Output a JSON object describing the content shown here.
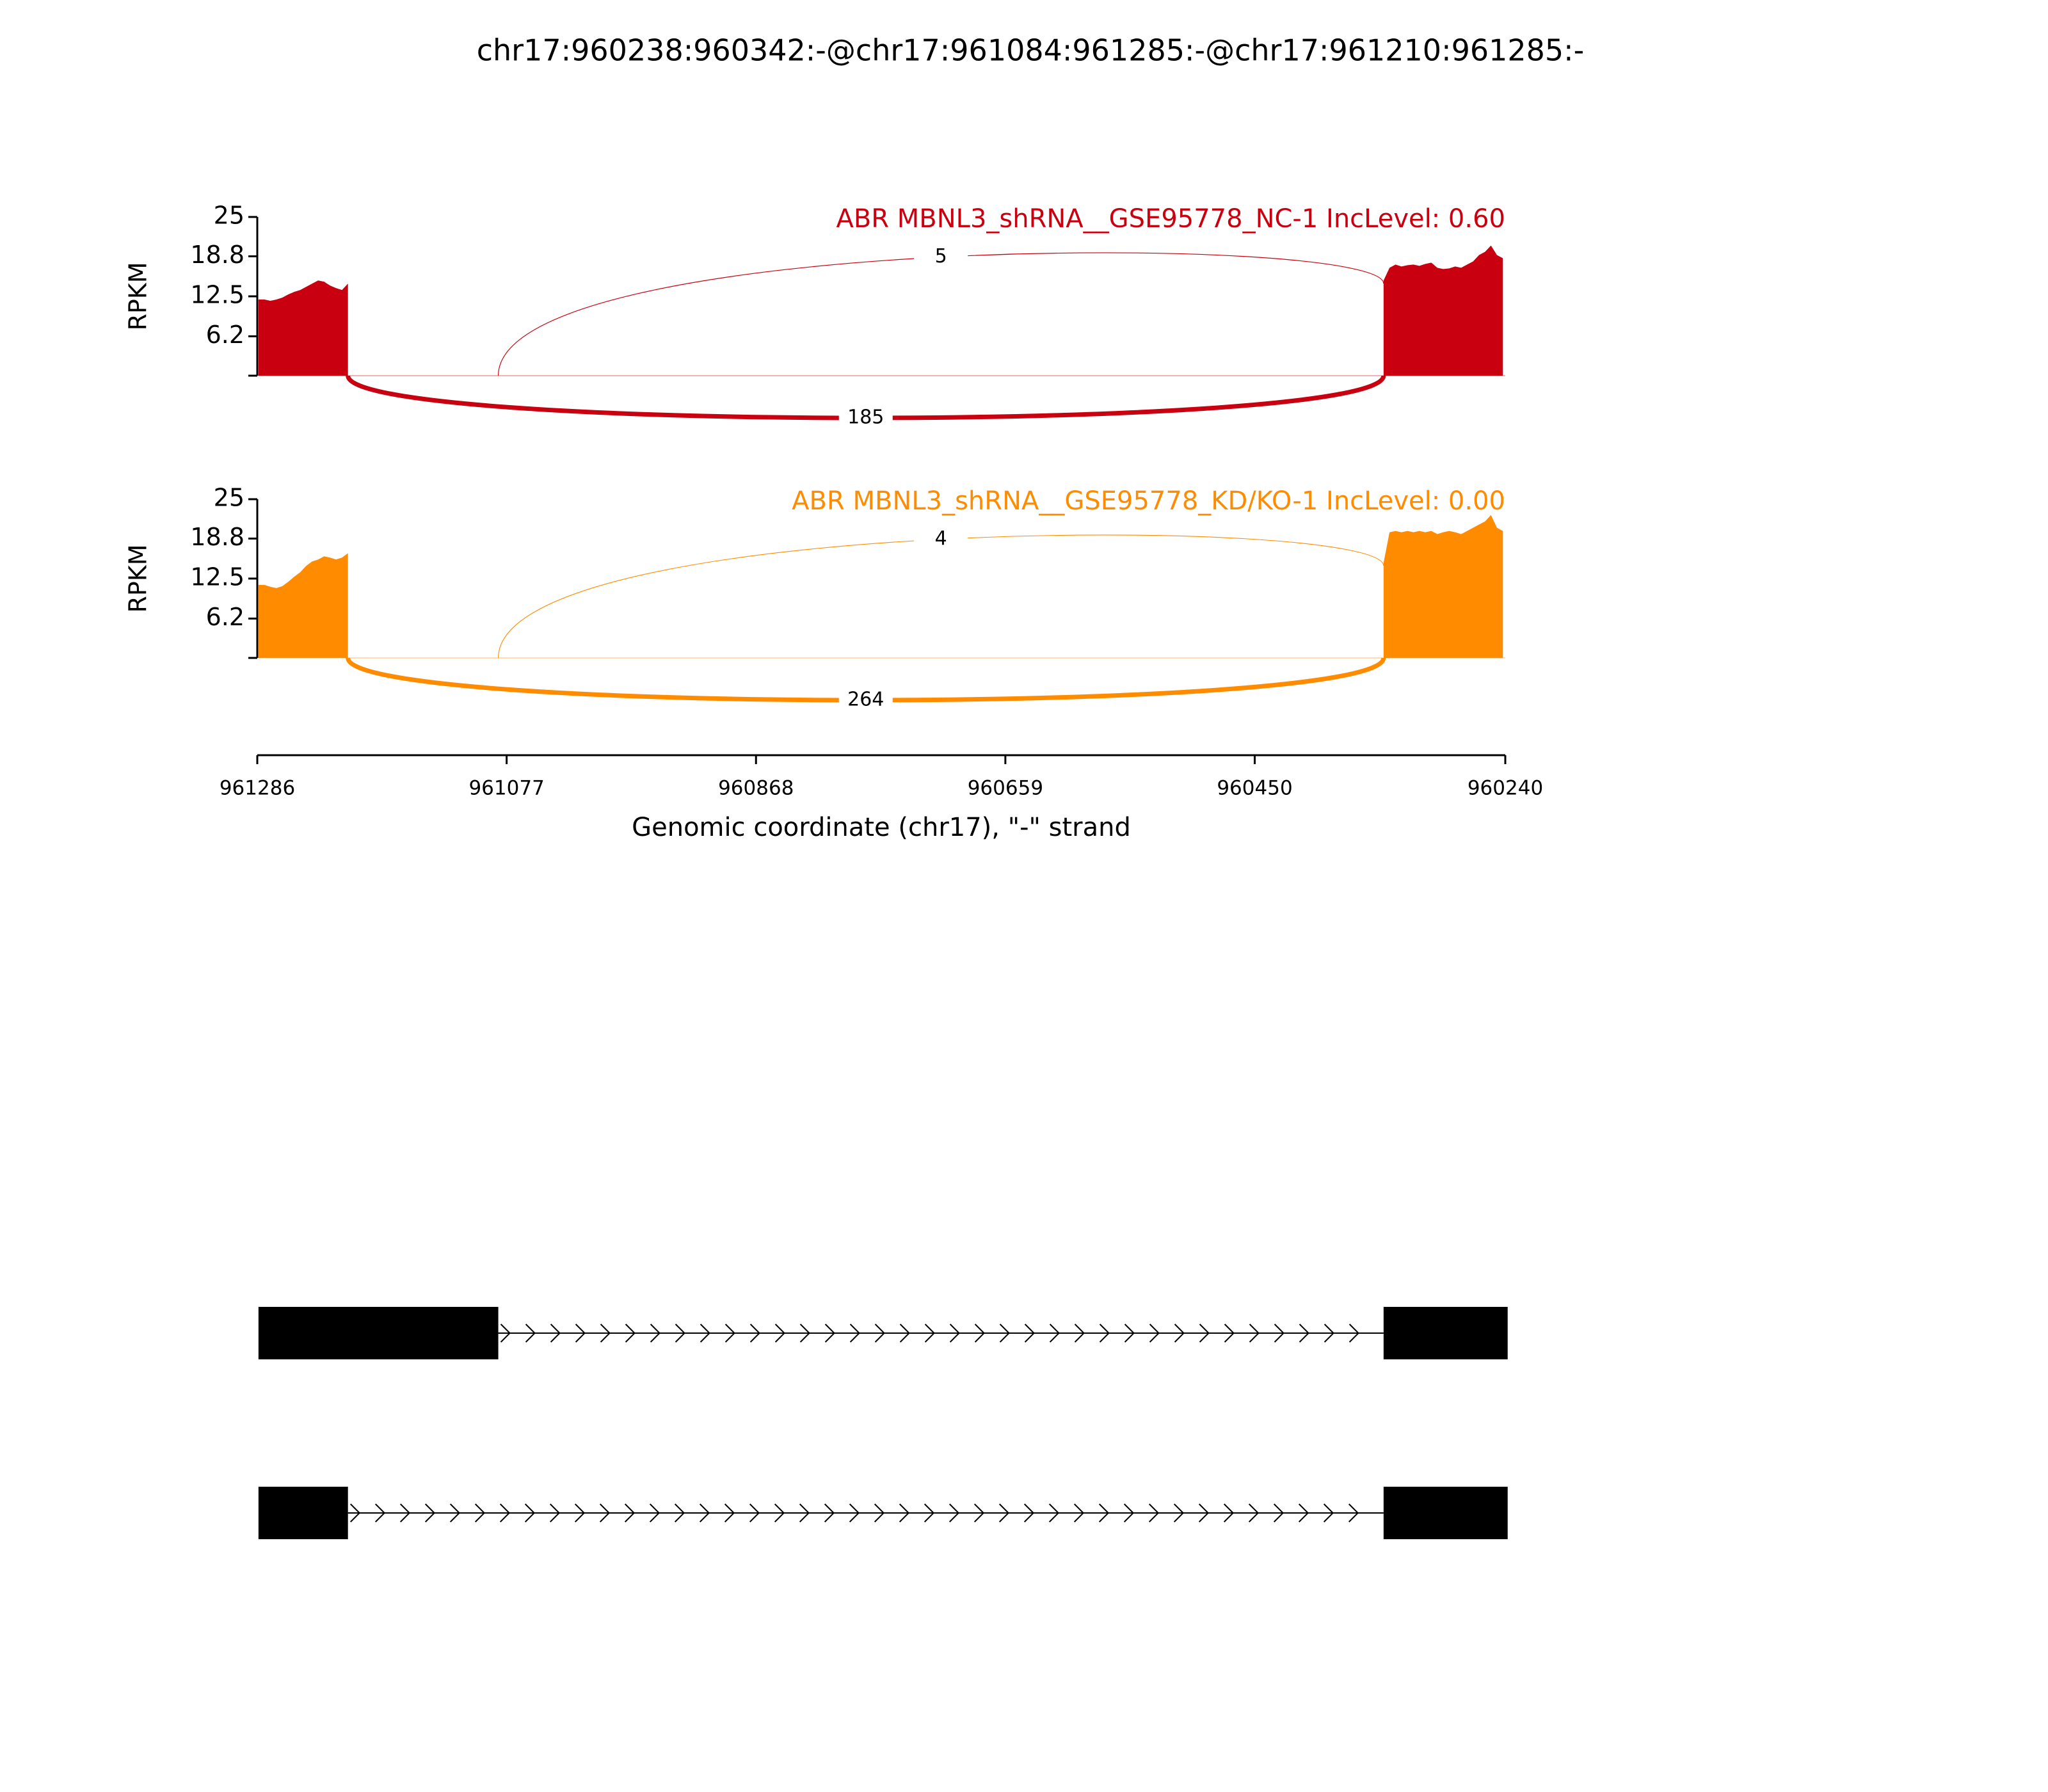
{
  "chart_data": {
    "type": "sashimi",
    "title": "chr17:960238:960342:-@chr17:961084:961285:-@chr17:961210:961285:-",
    "xlabel": "Genomic coordinate (chr17), \"-\" strand",
    "xlim": [
      961286,
      960240
    ],
    "xticks": [
      961286,
      961077,
      960868,
      960659,
      960450,
      960240
    ],
    "tracks": [
      {
        "name": "ABR MBNL3_shRNA__GSE95778_NC-1 IncLevel: 0.60",
        "color": "#c8000f",
        "ylabel": "RPKM",
        "ylim": [
          0,
          25
        ],
        "yticks": [
          6.2,
          12.5,
          18.8,
          25
        ],
        "x": [
          961285,
          961280,
          961275,
          961270,
          961265,
          961260,
          961255,
          961250,
          961245,
          961240,
          961235,
          961230,
          961225,
          961220,
          961215,
          961210,
          961150,
          960342,
          960337,
          960332,
          960327,
          960322,
          960317,
          960312,
          960307,
          960302,
          960297,
          960292,
          960287,
          960282,
          960277,
          960272,
          960267,
          960262,
          960257,
          960252,
          960247,
          960242
        ],
        "values": [
          12,
          12,
          11.8,
          12,
          12.3,
          12.8,
          13.2,
          13.5,
          14,
          14.5,
          15,
          14.8,
          14.2,
          13.8,
          13.5,
          14.5,
          null,
          15,
          17,
          17.5,
          17.2,
          17.4,
          17.5,
          17.3,
          17.6,
          17.8,
          17,
          16.8,
          16.9,
          17.2,
          17,
          17.5,
          18,
          19,
          19.5,
          20.5,
          19,
          18.5
        ],
        "junctions": [
          {
            "from": 961084,
            "to": 960342,
            "count": 5
          },
          {
            "from": 961210,
            "to": 960342,
            "count": 185
          }
        ]
      },
      {
        "name": "ABR MBNL3_shRNA__GSE95778_KD/KO-1 IncLevel: 0.00",
        "color": "#ff8c00",
        "ylabel": "RPKM",
        "ylim": [
          0,
          25
        ],
        "yticks": [
          6.2,
          12.5,
          18.8,
          25
        ],
        "x": [
          961285,
          961280,
          961275,
          961270,
          961265,
          961260,
          961255,
          961250,
          961245,
          961240,
          961235,
          961230,
          961225,
          961220,
          961215,
          961210,
          961150,
          960342,
          960337,
          960332,
          960327,
          960322,
          960317,
          960312,
          960307,
          960302,
          960297,
          960292,
          960287,
          960282,
          960277,
          960272,
          960267,
          960262,
          960257,
          960252,
          960247,
          960242
        ],
        "values": [
          11.5,
          11.5,
          11.2,
          11,
          11.3,
          12,
          12.8,
          13.5,
          14.5,
          15.2,
          15.5,
          16,
          15.8,
          15.5,
          15.8,
          16.5,
          null,
          15,
          19.8,
          20,
          19.8,
          20,
          19.8,
          20,
          19.8,
          20,
          19.5,
          19.8,
          20,
          19.8,
          19.5,
          20,
          20.5,
          21,
          21.5,
          22.5,
          20.5,
          20
        ],
        "junctions": [
          {
            "from": 961084,
            "to": 960342,
            "count": 4
          },
          {
            "from": 961210,
            "to": 960342,
            "count": 264
          }
        ]
      }
    ],
    "transcripts": [
      {
        "exons": [
          [
            961285,
            961084
          ],
          [
            960342,
            960238
          ]
        ]
      },
      {
        "exons": [
          [
            961285,
            961210
          ],
          [
            960342,
            960238
          ]
        ]
      }
    ]
  }
}
